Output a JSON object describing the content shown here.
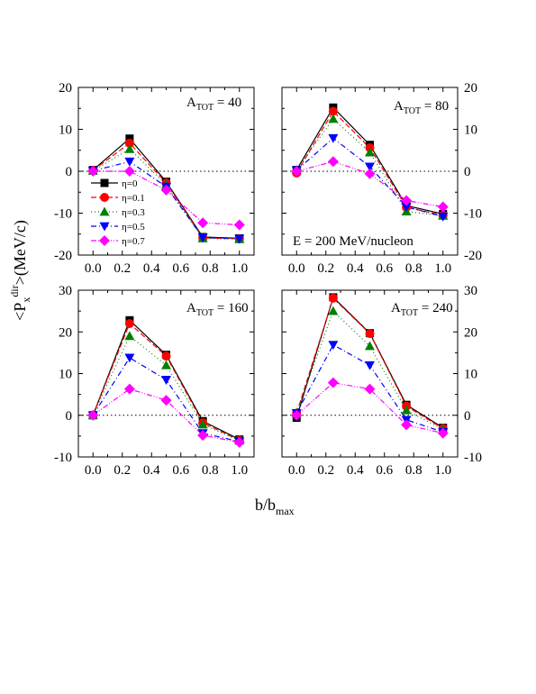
{
  "figure": {
    "ylabel_main": "<P",
    "ylabel_sub": "x",
    "ylabel_sup": "dir",
    "ylabel_rest": ">(MeV/c)",
    "xlabel_main": "b/b",
    "xlabel_sub": "max",
    "energy_label": "E = 200 MeV/nucleon"
  },
  "legend": [
    {
      "label": "η=0",
      "color": "#000000",
      "marker": "square",
      "dash": ""
    },
    {
      "label": "η=0.1",
      "color": "#ff0000",
      "marker": "circle",
      "dash": "6,3"
    },
    {
      "label": "η=0.3",
      "color": "#008000",
      "marker": "triangle-up",
      "dash": "1,3"
    },
    {
      "label": "η=0.5",
      "color": "#0000ff",
      "marker": "triangle-down",
      "dash": "6,3,1,3"
    },
    {
      "label": "η=0.7",
      "color": "#ff00ff",
      "marker": "diamond",
      "dash": "6,2,1,2,1,2"
    }
  ],
  "chart_data": [
    {
      "type": "line",
      "panel_label_main": "A",
      "panel_label_sub": "TOT",
      "panel_label_value": " = 40",
      "x": [
        0.0,
        0.25,
        0.5,
        0.75,
        1.0
      ],
      "xticks": [
        "0.0",
        "0.2",
        "0.4",
        "0.6",
        "0.8",
        "1.0"
      ],
      "xlim": [
        -0.1,
        1.1
      ],
      "ylim": [
        -20,
        20
      ],
      "yticks": [
        "-20",
        "-10",
        "0",
        "10",
        "20"
      ],
      "ytick_values": [
        -20,
        -10,
        0,
        10,
        20
      ],
      "yaxis_side": "left",
      "series": [
        {
          "name": "η=0",
          "values": [
            0.3,
            7.8,
            -2.5,
            -15.7,
            -16.0
          ]
        },
        {
          "name": "η=0.1",
          "values": [
            0.2,
            6.7,
            -2.8,
            -15.9,
            -16.1
          ]
        },
        {
          "name": "η=0.3",
          "values": [
            0.1,
            5.3,
            -3.2,
            -16.0,
            -16.2
          ]
        },
        {
          "name": "η=0.5",
          "values": [
            0.1,
            2.3,
            -3.7,
            -15.8,
            -16.1
          ]
        },
        {
          "name": "η=0.7",
          "values": [
            0.0,
            0.0,
            -4.5,
            -12.3,
            -12.8
          ]
        }
      ]
    },
    {
      "type": "line",
      "panel_label_main": "A",
      "panel_label_sub": "TOT",
      "panel_label_value": " = 80",
      "x": [
        0.0,
        0.25,
        0.5,
        0.75,
        1.0
      ],
      "xticks": [
        "0.0",
        "0.2",
        "0.4",
        "0.6",
        "0.8",
        "1.0"
      ],
      "xlim": [
        -0.1,
        1.1
      ],
      "ylim": [
        -20,
        20
      ],
      "yticks": [
        "-20",
        "-10",
        "0",
        "10",
        "20"
      ],
      "ytick_values": [
        -20,
        -10,
        0,
        10,
        20
      ],
      "yaxis_side": "right",
      "series": [
        {
          "name": "η=0",
          "values": [
            0.3,
            15.2,
            6.3,
            -8.2,
            -10.2
          ]
        },
        {
          "name": "η=0.1",
          "values": [
            -0.4,
            14.3,
            5.6,
            -8.6,
            -10.5
          ]
        },
        {
          "name": "η=0.3",
          "values": [
            0.3,
            12.5,
            4.5,
            -9.6,
            -10.6
          ]
        },
        {
          "name": "η=0.5",
          "values": [
            0.2,
            7.9,
            1.1,
            -8.5,
            -10.8
          ]
        },
        {
          "name": "η=0.7",
          "values": [
            0.0,
            2.3,
            -0.6,
            -7.0,
            -8.5
          ]
        }
      ]
    },
    {
      "type": "line",
      "panel_label_main": "A",
      "panel_label_sub": "TOT",
      "panel_label_value": " = 160",
      "x": [
        0.0,
        0.25,
        0.5,
        0.75,
        1.0
      ],
      "xticks": [
        "0.0",
        "0.2",
        "0.4",
        "0.6",
        "0.8",
        "1.0"
      ],
      "xlim": [
        -0.1,
        1.1
      ],
      "ylim": [
        -10,
        30
      ],
      "yticks": [
        "-10",
        "0",
        "10",
        "20",
        "30"
      ],
      "ytick_values": [
        -10,
        0,
        10,
        20,
        30
      ],
      "yaxis_side": "left",
      "series": [
        {
          "name": "η=0",
          "values": [
            0.0,
            22.8,
            14.5,
            -1.4,
            -5.8
          ]
        },
        {
          "name": "η=0.1",
          "values": [
            0.0,
            22.0,
            14.2,
            -1.8,
            -6.0
          ]
        },
        {
          "name": "η=0.3",
          "values": [
            0.0,
            19.0,
            12.0,
            -2.2,
            -6.1
          ]
        },
        {
          "name": "η=0.5",
          "values": [
            0.0,
            13.8,
            8.5,
            -4.3,
            -6.3
          ]
        },
        {
          "name": "η=0.7",
          "values": [
            0.0,
            6.3,
            3.6,
            -4.8,
            -6.5
          ]
        }
      ]
    },
    {
      "type": "line",
      "panel_label_main": "A",
      "panel_label_sub": "TOT",
      "panel_label_value": " = 240",
      "x": [
        0.0,
        0.25,
        0.5,
        0.75,
        1.0
      ],
      "xticks": [
        "0.0",
        "0.2",
        "0.4",
        "0.6",
        "0.8",
        "1.0"
      ],
      "xlim": [
        -0.1,
        1.1
      ],
      "ylim": [
        -10,
        30
      ],
      "yticks": [
        "-10",
        "0",
        "10",
        "20",
        "30"
      ],
      "ytick_values": [
        -10,
        0,
        10,
        20,
        30
      ],
      "yaxis_side": "right",
      "series": [
        {
          "name": "η=0",
          "values": [
            -0.6,
            28.3,
            19.7,
            2.5,
            -3.0
          ]
        },
        {
          "name": "η=0.1",
          "values": [
            0.5,
            28.1,
            19.6,
            2.2,
            -3.2
          ]
        },
        {
          "name": "η=0.3",
          "values": [
            0.6,
            25.0,
            16.6,
            1.2,
            -3.4
          ]
        },
        {
          "name": "η=0.5",
          "values": [
            0.5,
            16.9,
            12.0,
            -1.1,
            -4.0
          ]
        },
        {
          "name": "η=0.7",
          "values": [
            0.0,
            7.8,
            6.3,
            -2.3,
            -4.3
          ]
        }
      ]
    }
  ]
}
